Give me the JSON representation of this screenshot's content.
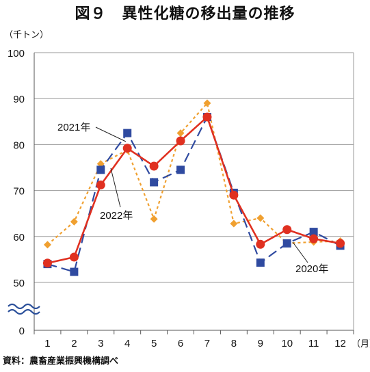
{
  "title": "図９　異性化糖の移出量の推移",
  "source": "資料：農畜産業振興機構調べ",
  "chart_data": {
    "type": "line",
    "unit_label": "（千トン）",
    "x_unit_label": "（月）",
    "categories": [
      "1",
      "2",
      "3",
      "4",
      "5",
      "6",
      "7",
      "8",
      "9",
      "10",
      "11",
      "12"
    ],
    "y_ticks": [
      0,
      50,
      60,
      70,
      80,
      90,
      100
    ],
    "y_axis_break": true,
    "ylim": [
      50,
      100
    ],
    "grid": true,
    "series": [
      {
        "name": "2020年",
        "color": "#f0a030",
        "style": "dotted",
        "marker": "diamond",
        "values": [
          58.2,
          63.2,
          75.8,
          78.8,
          63.8,
          82.5,
          89.0,
          62.8,
          64.0,
          58.5,
          58.8,
          59.0
        ]
      },
      {
        "name": "2021年",
        "color": "#2f4aa0",
        "style": "dashed",
        "marker": "square",
        "values": [
          54.0,
          52.3,
          74.5,
          82.5,
          71.8,
          74.5,
          86.0,
          69.5,
          54.3,
          58.5,
          61.0,
          58.0
        ]
      },
      {
        "name": "2022年",
        "color": "#e03020",
        "style": "solid",
        "marker": "circle",
        "values": [
          54.2,
          55.5,
          71.2,
          79.2,
          75.3,
          80.8,
          86.0,
          69.0,
          58.3,
          61.5,
          59.5,
          58.5
        ]
      }
    ]
  }
}
